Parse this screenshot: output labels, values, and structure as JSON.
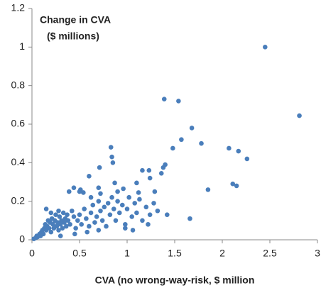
{
  "chart_data": {
    "type": "scatter",
    "title": "Change in CVA",
    "subtitle": "($ millions)",
    "x_label": "CVA (no wrong-way-risk, $ million",
    "color": "#4a7ebb",
    "xlim": [
      0,
      3
    ],
    "xticks": [
      0,
      0.5,
      1,
      1.5,
      2,
      2.5,
      3
    ],
    "ylim": [
      0,
      1.2
    ],
    "yticks": [
      0,
      0.2,
      0.4,
      0.6,
      0.8,
      1,
      1.2
    ],
    "x": [
      2.45,
      2.81,
      1.39,
      1.54,
      1.68,
      1.78,
      1.57,
      1.48,
      2.07,
      2.17,
      2.26,
      2.11,
      2.15,
      1.85,
      1.66,
      1.4,
      1.38,
      1.42,
      0.83,
      0.84,
      0.85,
      0.71,
      0.6,
      1.1,
      1.36,
      1.16,
      1.23,
      1.24,
      1.29,
      1.12,
      0.87,
      0.96,
      0.9,
      0.44,
      0.39,
      0.51,
      0.54,
      0.7,
      0.72,
      0.02,
      0.04,
      0.05,
      0.06,
      0.08,
      0.09,
      0.1,
      0.11,
      0.12,
      0.13,
      0.14,
      0.15,
      0.16,
      0.17,
      0.18,
      0.19,
      0.2,
      0.21,
      0.22,
      0.23,
      0.24,
      0.25,
      0.26,
      0.27,
      0.28,
      0.29,
      0.3,
      0.31,
      0.32,
      0.33,
      0.34,
      0.35,
      0.36,
      0.37,
      0.38,
      0.4,
      0.42,
      0.44,
      0.46,
      0.48,
      0.5,
      0.52,
      0.55,
      0.57,
      0.6,
      0.62,
      0.64,
      0.66,
      0.68,
      0.7,
      0.72,
      0.74,
      0.76,
      0.78,
      0.8,
      0.82,
      0.84,
      0.86,
      0.88,
      0.9,
      0.92,
      0.95,
      0.98,
      1.0,
      1.02,
      1.05,
      1.08,
      1.1,
      1.13,
      1.16,
      1.2,
      1.24,
      1.28,
      1.32,
      0.15,
      0.2,
      0.28,
      0.5,
      0.62,
      0.98,
      1.06,
      1.22,
      0.45,
      0.3,
      0.58,
      0.7
    ],
    "values": [
      1.0,
      0.644,
      0.73,
      0.72,
      0.58,
      0.5,
      0.52,
      0.475,
      0.475,
      0.46,
      0.42,
      0.29,
      0.28,
      0.26,
      0.11,
      0.39,
      0.375,
      0.13,
      0.48,
      0.43,
      0.4,
      0.375,
      0.33,
      0.295,
      0.345,
      0.36,
      0.36,
      0.32,
      0.25,
      0.245,
      0.295,
      0.265,
      0.25,
      0.27,
      0.25,
      0.26,
      0.245,
      0.27,
      0.24,
      0.005,
      0.01,
      0.02,
      0.015,
      0.03,
      0.02,
      0.04,
      0.05,
      0.03,
      0.06,
      0.08,
      0.05,
      0.07,
      0.1,
      0.06,
      0.09,
      0.04,
      0.11,
      0.08,
      0.06,
      0.1,
      0.13,
      0.07,
      0.09,
      0.05,
      0.12,
      0.08,
      0.1,
      0.06,
      0.14,
      0.09,
      0.11,
      0.07,
      0.13,
      0.1,
      0.08,
      0.15,
      0.12,
      0.06,
      0.1,
      0.13,
      0.08,
      0.16,
      0.11,
      0.07,
      0.14,
      0.18,
      0.09,
      0.12,
      0.2,
      0.15,
      0.1,
      0.17,
      0.07,
      0.19,
      0.13,
      0.22,
      0.16,
      0.1,
      0.2,
      0.14,
      0.18,
      0.08,
      0.16,
      0.22,
      0.12,
      0.19,
      0.14,
      0.21,
      0.1,
      0.17,
      0.13,
      0.19,
      0.15,
      0.16,
      0.14,
      0.15,
      0.25,
      0.22,
      0.06,
      0.05,
      0.08,
      0.03,
      0.02,
      0.04,
      0.05
    ]
  }
}
